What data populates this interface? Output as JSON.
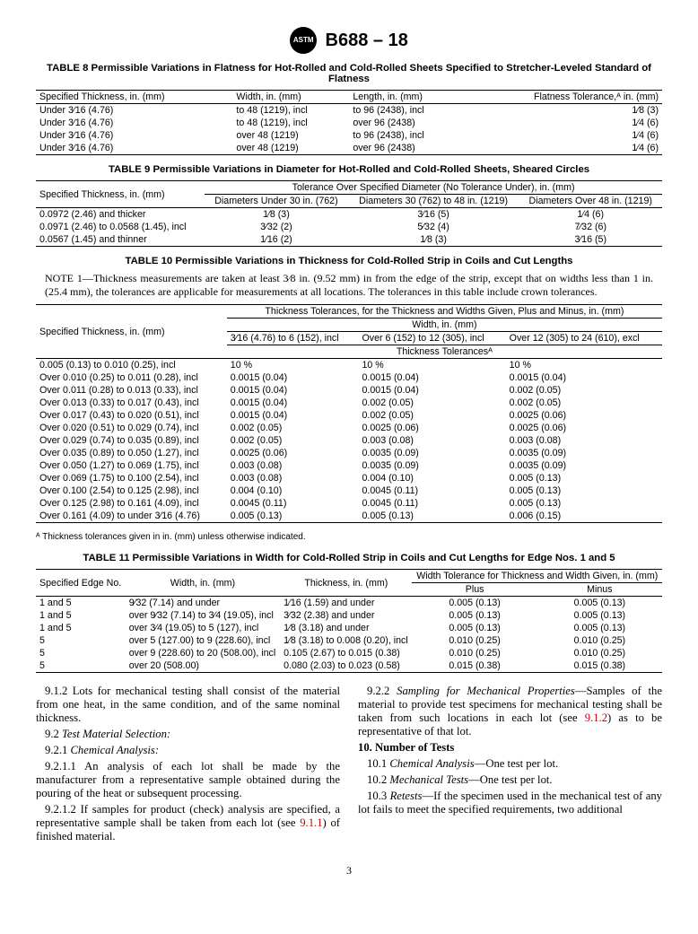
{
  "header": {
    "logo_text": "ASTM",
    "standard": "B688 – 18"
  },
  "table8": {
    "title": "TABLE 8 Permissible Variations in Flatness for Hot-Rolled and Cold-Rolled Sheets Specified to Stretcher-Leveled Standard of Flatness",
    "headers": [
      "Specified Thickness, in. (mm)",
      "Width, in. (mm)",
      "Length, in. (mm)",
      "Flatness Tolerance,ᴬ in. (mm)"
    ],
    "rows": [
      [
        "Under 3⁄16 (4.76)",
        "to 48 (1219), incl",
        "to 96 (2438), incl",
        "1⁄8 (3)"
      ],
      [
        "Under 3⁄16 (4.76)",
        "to 48 (1219), incl",
        "over 96 (2438)",
        "1⁄4 (6)"
      ],
      [
        "Under 3⁄16 (4.76)",
        "over 48 (1219)",
        "to 96 (2438), incl",
        "1⁄4 (6)"
      ],
      [
        "Under 3⁄16 (4.76)",
        "over 48 (1219)",
        "over 96 (2438)",
        "1⁄4 (6)"
      ]
    ]
  },
  "table9": {
    "title": "TABLE 9 Permissible Variations in Diameter for Hot-Rolled and Cold-Rolled Sheets, Sheared Circles",
    "row_header": "Specified Thickness, in. (mm)",
    "span_header": "Tolerance Over Specified Diameter (No Tolerance Under), in. (mm)",
    "sub_headers": [
      "Diameters Under 30 in. (762)",
      "Diameters 30 (762) to 48 in. (1219)",
      "Diameters Over 48 in. (1219)"
    ],
    "rows": [
      [
        "0.0972 (2.46) and thicker",
        "1⁄8 (3)",
        "3⁄16 (5)",
        "1⁄4 (6)"
      ],
      [
        "0.0971 (2.46) to 0.0568 (1.45), incl",
        "3⁄32 (2)",
        "5⁄32 (4)",
        "7⁄32 (6)"
      ],
      [
        "0.0567 (1.45) and thinner",
        "1⁄16 (2)",
        "1⁄8 (3)",
        "3⁄16 (5)"
      ]
    ]
  },
  "table10": {
    "title": "TABLE 10 Permissible Variations in Thickness for Cold-Rolled Strip in Coils and Cut Lengths",
    "note": "NOTE 1—Thickness measurements are taken at least 3⁄8 in. (9.52 mm) in from the edge of the strip, except that on widths less than 1 in. (25.4 mm), the tolerances are applicable for measurements at all locations. The tolerances in this table include crown tolerances.",
    "row_header": "Specified Thickness, in. (mm)",
    "top_header": "Thickness Tolerances, for the Thickness and Widths Given, Plus and Minus, in. (mm)",
    "width_header": "Width, in. (mm)",
    "width_subs": [
      "3⁄16 (4.76) to 6 (152), incl",
      "Over 6 (152) to 12 (305), incl",
      "Over 12 (305) to 24 (610), excl"
    ],
    "tol_header": "Thickness Tolerancesᴬ",
    "rows": [
      [
        "0.005 (0.13) to 0.010 (0.25), incl",
        "10 %",
        "10 %",
        "10 %"
      ],
      [
        "Over 0.010 (0.25) to 0.011 (0.28), incl",
        "0.0015 (0.04)",
        "0.0015 (0.04)",
        "0.0015 (0.04)"
      ],
      [
        "Over 0.011 (0.28) to 0.013 (0.33), incl",
        "0.0015 (0.04)",
        "0.0015 (0.04)",
        "0.002 (0.05)"
      ],
      [
        "Over 0.013 (0.33) to 0.017 (0.43), incl",
        "0.0015 (0.04)",
        "0.002 (0.05)",
        "0.002 (0.05)"
      ],
      [
        "Over 0.017 (0.43) to 0.020 (0.51), incl",
        "0.0015 (0.04)",
        "0.002 (0.05)",
        "0.0025 (0.06)"
      ],
      [
        "Over 0.020 (0.51) to 0.029 (0.74), incl",
        "0.002 (0.05)",
        "0.0025 (0.06)",
        "0.0025 (0.06)"
      ],
      [
        "Over 0.029 (0.74) to 0.035 (0.89), incl",
        "0.002 (0.05)",
        "0.003 (0.08)",
        "0.003 (0.08)"
      ],
      [
        "Over 0.035 (0.89) to 0.050 (1.27), incl",
        "0.0025 (0.06)",
        "0.0035 (0.09)",
        "0.0035 (0.09)"
      ],
      [
        "Over 0.050 (1.27) to 0.069 (1.75), incl",
        "0.003 (0.08)",
        "0.0035 (0.09)",
        "0.0035 (0.09)"
      ],
      [
        "Over 0.069 (1.75) to 0.100 (2.54), incl",
        "0.003 (0.08)",
        "0.004 (0.10)",
        "0.005 (0.13)"
      ],
      [
        "Over 0.100 (2.54) to 0.125 (2.98), incl",
        "0.004 (0.10)",
        "0.0045 (0.11)",
        "0.005 (0.13)"
      ],
      [
        "Over 0.125 (2.98) to 0.161 (4.09), incl",
        "0.0045 (0.11)",
        "0.0045 (0.11)",
        "0.005 (0.13)"
      ],
      [
        "Over 0.161 (4.09) to under 3⁄16 (4.76)",
        "0.005 (0.13)",
        "0.005 (0.13)",
        "0.006 (0.15)"
      ]
    ],
    "footnote": "ᴬ Thickness tolerances given in in. (mm) unless otherwise indicated."
  },
  "table11": {
    "title": "TABLE 11 Permissible Variations in Width for Cold-Rolled Strip in Coils and Cut Lengths for Edge Nos. 1 and 5",
    "headers": [
      "Specified Edge No.",
      "Width, in. (mm)",
      "Thickness, in. (mm)"
    ],
    "tolerance_header": "Width Tolerance for Thickness and Width Given, in. (mm)",
    "plus": "Plus",
    "minus": "Minus",
    "rows": [
      [
        "1 and 5",
        "9⁄32 (7.14) and under",
        "1⁄16 (1.59) and under",
        "0.005 (0.13)",
        "0.005 (0.13)"
      ],
      [
        "1 and 5",
        "over 9⁄32 (7.14) to 3⁄4 (19.05), incl",
        "3⁄32 (2.38) and under",
        "0.005 (0.13)",
        "0.005 (0.13)"
      ],
      [
        "1 and 5",
        "over 3⁄4 (19.05) to 5 (127), incl",
        "1⁄8 (3.18) and under",
        "0.005 (0.13)",
        "0.005 (0.13)"
      ],
      [
        "5",
        "over 5 (127.00) to 9 (228.60), incl",
        "1⁄8 (3.18) to 0.008 (0.20), incl",
        "0.010 (0.25)",
        "0.010 (0.25)"
      ],
      [
        "5",
        "over 9 (228.60) to 20 (508.00), incl",
        "0.105 (2.67) to 0.015 (0.38)",
        "0.010 (0.25)",
        "0.010 (0.25)"
      ],
      [
        "5",
        "over 20 (508.00)",
        "0.080 (2.03) to 0.023 (0.58)",
        "0.015 (0.38)",
        "0.015 (0.38)"
      ]
    ]
  },
  "body_text": {
    "p1": "9.1.2 Lots for mechanical testing shall consist of the material from one heat, in the same condition, and of the same nominal thickness.",
    "p2_label": "9.2 ",
    "p2_italic": "Test Material Selection:",
    "p3_label": "9.2.1 ",
    "p3_italic": "Chemical Analysis:",
    "p4": "9.2.1.1 An analysis of each lot shall be made by the manufacturer from a representative sample obtained during the pouring of the heat or subsequent processing.",
    "p5a": "9.2.1.2 If samples for product (check) analysis are specified, a representative sample shall be taken from each lot (see ",
    "p5_ref": "9.1.1",
    "p5b": ") of finished material.",
    "p6_label": "9.2.2 ",
    "p6_italic": "Sampling for Mechanical Properties",
    "p6a": "—Samples of the material to provide test specimens for mechanical testing shall be taken from such locations in each lot (see ",
    "p6_ref": "9.1.2",
    "p6b": ") as to be representative of that lot.",
    "h10": "10. Number of Tests",
    "p7_label": "10.1 ",
    "p7_italic": "Chemical Analysis",
    "p7_text": "—One test per lot.",
    "p8_label": "10.2 ",
    "p8_italic": "Mechanical Tests",
    "p8_text": "—One test per lot.",
    "p9_label": "10.3 ",
    "p9_italic": "Retests",
    "p9_text": "—If the specimen used in the mechanical test of any lot fails to meet the specified requirements, two additional"
  },
  "page_number": "3"
}
